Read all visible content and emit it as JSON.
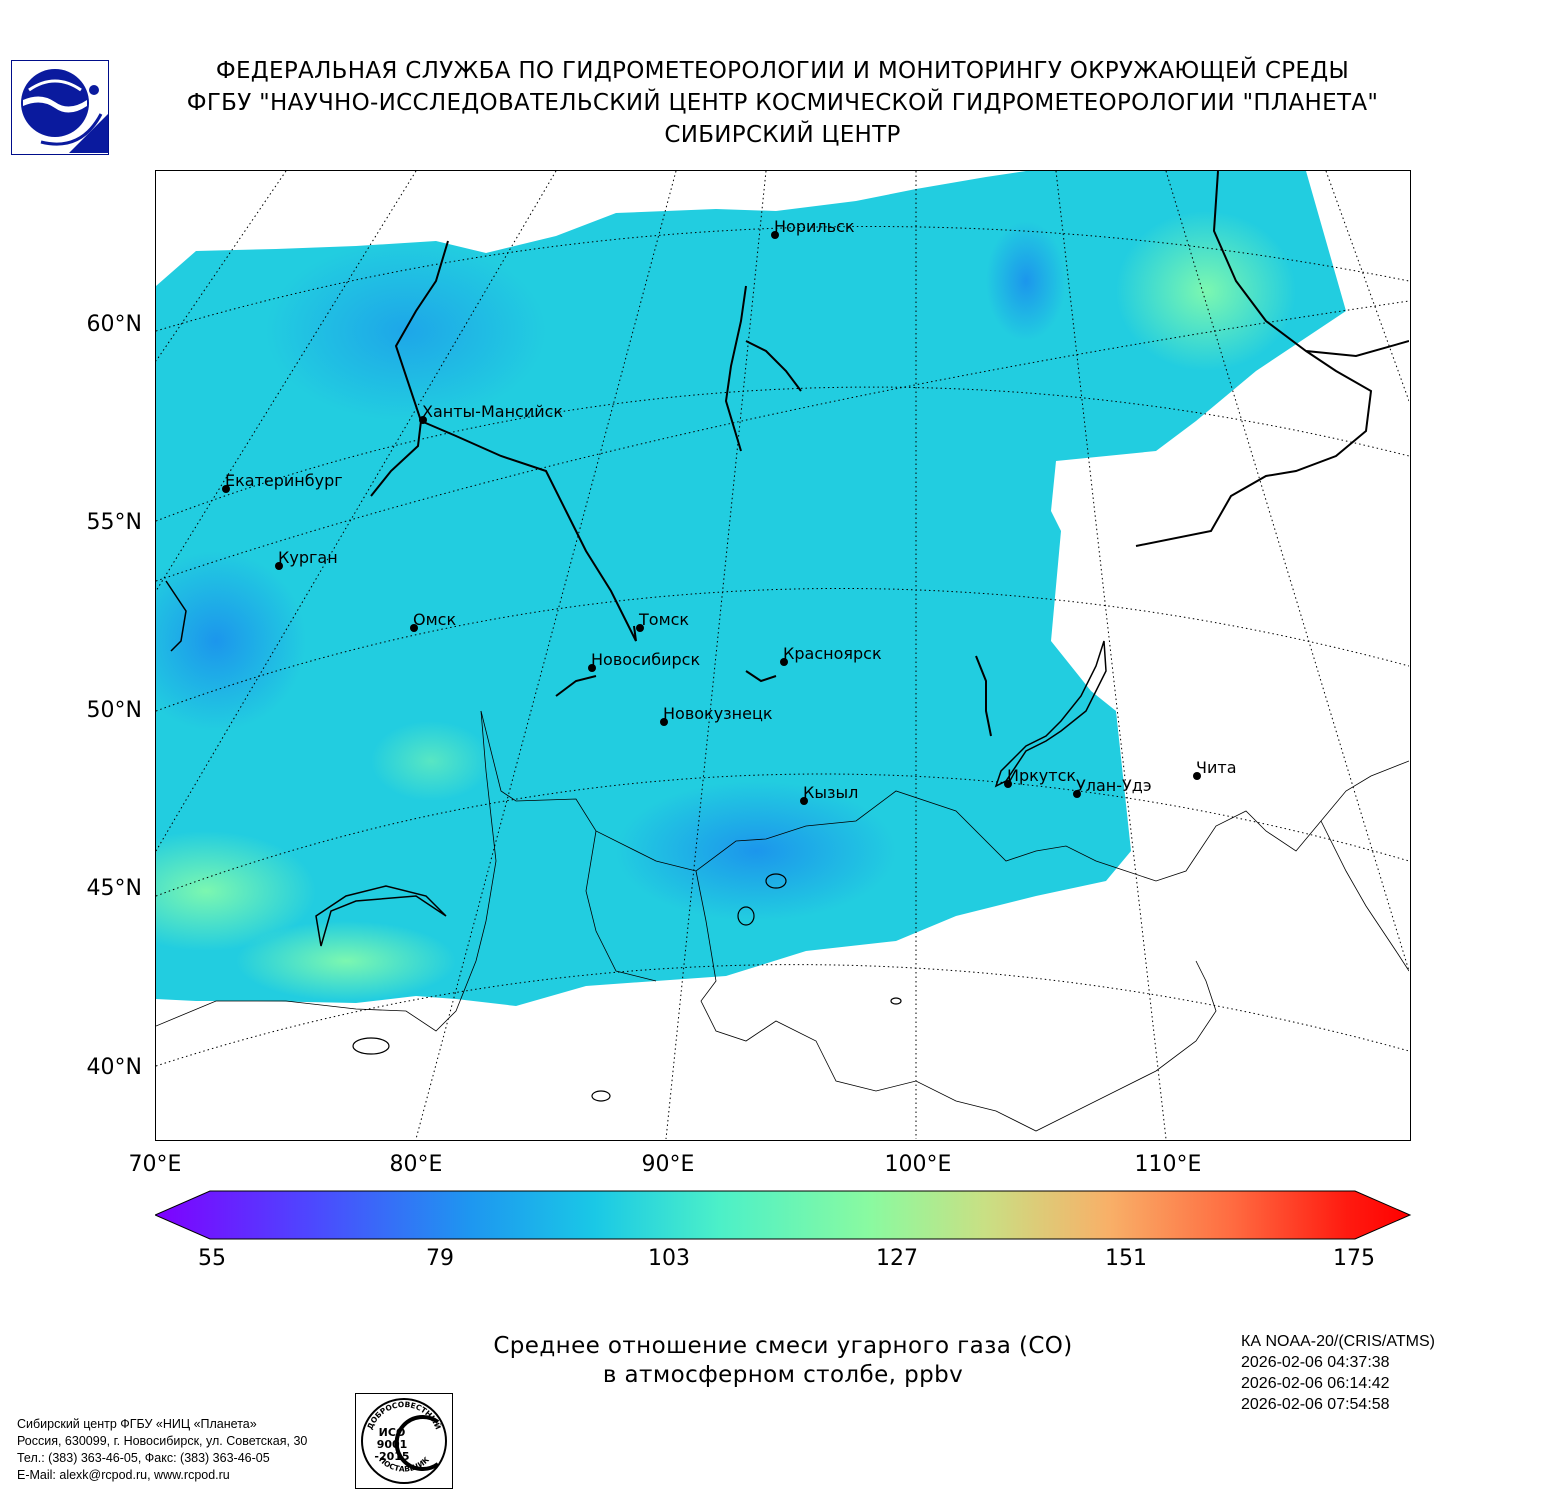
{
  "header": {
    "line1": "ФЕДЕРАЛЬНАЯ СЛУЖБА ПО ГИДРОМЕТЕОРОЛОГИИ И МОНИТОРИНГУ ОКРУЖАЮЩЕЙ СРЕДЫ",
    "line2": "ФГБУ \"НАУЧНО-ИССЛЕДОВАТЕЛЬСКИЙ ЦЕНТР КОСМИЧЕСКОЙ ГИДРОМЕТЕОРОЛОГИИ \"ПЛАНЕТА\"",
    "line3": "СИБИРСКИЙ ЦЕНТР"
  },
  "map": {
    "lat_labels": [
      "60°N",
      "55°N",
      "50°N",
      "45°N",
      "40°N"
    ],
    "lon_labels": [
      "70°E",
      "80°E",
      "90°E",
      "100°E",
      "110°E"
    ],
    "cities": [
      {
        "name": "Норильск"
      },
      {
        "name": "Ханты-Мансийск"
      },
      {
        "name": "Екатеринбург"
      },
      {
        "name": "Курган"
      },
      {
        "name": "Омск"
      },
      {
        "name": "Томск"
      },
      {
        "name": "Новосибирск"
      },
      {
        "name": "Красноярск"
      },
      {
        "name": "Новокузнецк"
      },
      {
        "name": "Кызыл"
      },
      {
        "name": "Иркутск"
      },
      {
        "name": "Улан-Удэ"
      },
      {
        "name": "Чита"
      }
    ],
    "colors": {
      "field_main": "#22cde0",
      "field_low": "#1fa6e8",
      "field_high": "#6ff0b8",
      "coast": "#000000"
    }
  },
  "colorbar": {
    "min": 55,
    "max": 175,
    "ticks": [
      "55",
      "79",
      "103",
      "127",
      "151",
      "175"
    ],
    "colors": [
      "#7f00ff",
      "#4f45ff",
      "#1e96f0",
      "#1ac8e6",
      "#4cf0c8",
      "#8afaa0",
      "#c8e084",
      "#f8b068",
      "#ff6a40",
      "#ff1a10",
      "#ff0000"
    ]
  },
  "caption": {
    "line1": "Среднее отношение смеси угарного газа (CO)",
    "line2": "в атмосферном столбе, ppbv"
  },
  "satellite": {
    "name": "КА NOAA-20/(CRIS/ATMS)",
    "times": [
      "2026-02-06 04:37:38",
      "2026-02-06 06:14:42",
      "2026-02-06 07:54:58"
    ]
  },
  "footer": {
    "org": "Сибирский центр ФГБУ «НИЦ «Планета»",
    "address": "Россия, 630099, г. Новосибирск, ул. Советская, 30",
    "phone": "Тел.: (383) 363-46-05, Факс: (383) 363-46-05",
    "email": "E-Mail: alexk@rcpod.ru, www.rcpod.ru"
  },
  "stamp": {
    "top_text": "ДОБРОСОВЕСТНЫЙ",
    "line1": "ИСО",
    "line2": "9001",
    "line3": "-2015",
    "bottom_text": "ПОСТАВЩИК"
  }
}
